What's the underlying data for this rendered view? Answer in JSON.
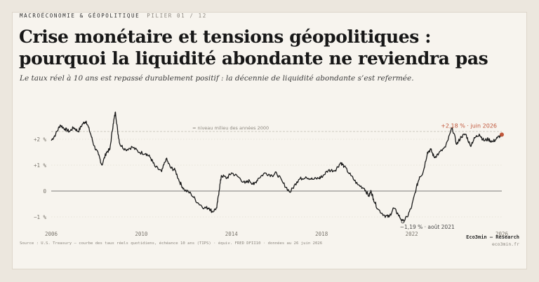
{
  "header": {
    "kicker": "MACROÉCONOMIE & GÉOPOLITIQUE",
    "pillar": "PILIER 01 / 12",
    "title": "Crise monétaire et tensions géopolitiques : pourquoi la liquidité abondante ne reviendra pas",
    "subtitle": "Le taux réel à 10 ans est repassé durablement positif : la décennie de liquidité abondante s’est refermée."
  },
  "footer": {
    "source": "Source : U.S. Treasury — courbe des taux réels quotidiens, échéance 10 ans (TIPS) · équiv. FRED DFII10 · données au 26 juin 2026",
    "brand": "Eco3min — Research",
    "url": "eco3min.fr"
  },
  "colors": {
    "line": "#1a1a1a",
    "accent": "#c0563a",
    "background": "#f7f4ee",
    "frame": "#ece7de"
  },
  "chart_data": {
    "type": "line",
    "title": "",
    "xlabel": "",
    "ylabel": "",
    "xlim": [
      2006,
      2026
    ],
    "ylim": [
      -1.25,
      3
    ],
    "x_ticks": [
      "2006",
      "2010",
      "2014",
      "2018",
      "2022",
      "2026"
    ],
    "y_ticks": [
      {
        "value": 2,
        "label": "+2 %"
      },
      {
        "value": 1,
        "label": "+1 %"
      },
      {
        "value": 0,
        "label": "0"
      },
      {
        "value": -1,
        "label": "−1 %"
      }
    ],
    "reference_line": {
      "value": 2.3,
      "label": "≈ niveau milieu des années 2000"
    },
    "series": [
      {
        "values": [
          {
            "x": 2006.0,
            "y": 1.95
          },
          {
            "x": 2006.2,
            "y": 2.2
          },
          {
            "x": 2006.4,
            "y": 2.55
          },
          {
            "x": 2006.6,
            "y": 2.4
          },
          {
            "x": 2006.8,
            "y": 2.3
          },
          {
            "x": 2007.0,
            "y": 2.45
          },
          {
            "x": 2007.2,
            "y": 2.3
          },
          {
            "x": 2007.4,
            "y": 2.6
          },
          {
            "x": 2007.55,
            "y": 2.7
          },
          {
            "x": 2007.75,
            "y": 2.2
          },
          {
            "x": 2007.9,
            "y": 1.75
          },
          {
            "x": 2008.1,
            "y": 1.4
          },
          {
            "x": 2008.25,
            "y": 1.0
          },
          {
            "x": 2008.45,
            "y": 1.5
          },
          {
            "x": 2008.6,
            "y": 1.6
          },
          {
            "x": 2008.75,
            "y": 2.6
          },
          {
            "x": 2008.85,
            "y": 3.05
          },
          {
            "x": 2008.95,
            "y": 2.3
          },
          {
            "x": 2009.05,
            "y": 1.8
          },
          {
            "x": 2009.3,
            "y": 1.6
          },
          {
            "x": 2009.6,
            "y": 1.7
          },
          {
            "x": 2009.9,
            "y": 1.5
          },
          {
            "x": 2010.2,
            "y": 1.45
          },
          {
            "x": 2010.4,
            "y": 1.3
          },
          {
            "x": 2010.6,
            "y": 0.95
          },
          {
            "x": 2010.9,
            "y": 0.75
          },
          {
            "x": 2011.1,
            "y": 1.25
          },
          {
            "x": 2011.3,
            "y": 0.9
          },
          {
            "x": 2011.5,
            "y": 0.8
          },
          {
            "x": 2011.7,
            "y": 0.35
          },
          {
            "x": 2011.9,
            "y": 0.05
          },
          {
            "x": 2012.2,
            "y": -0.1
          },
          {
            "x": 2012.5,
            "y": -0.45
          },
          {
            "x": 2012.8,
            "y": -0.65
          },
          {
            "x": 2013.0,
            "y": -0.65
          },
          {
            "x": 2013.15,
            "y": -0.8
          },
          {
            "x": 2013.35,
            "y": -0.65
          },
          {
            "x": 2013.45,
            "y": 0.0
          },
          {
            "x": 2013.55,
            "y": 0.6
          },
          {
            "x": 2013.8,
            "y": 0.5
          },
          {
            "x": 2014.0,
            "y": 0.7
          },
          {
            "x": 2014.3,
            "y": 0.55
          },
          {
            "x": 2014.6,
            "y": 0.3
          },
          {
            "x": 2014.8,
            "y": 0.4
          },
          {
            "x": 2015.0,
            "y": 0.25
          },
          {
            "x": 2015.2,
            "y": 0.5
          },
          {
            "x": 2015.5,
            "y": 0.7
          },
          {
            "x": 2015.8,
            "y": 0.6
          },
          {
            "x": 2016.0,
            "y": 0.7
          },
          {
            "x": 2016.3,
            "y": 0.3
          },
          {
            "x": 2016.6,
            "y": -0.05
          },
          {
            "x": 2016.9,
            "y": 0.35
          },
          {
            "x": 2017.0,
            "y": 0.45
          },
          {
            "x": 2017.3,
            "y": 0.55
          },
          {
            "x": 2017.6,
            "y": 0.45
          },
          {
            "x": 2017.9,
            "y": 0.5
          },
          {
            "x": 2018.0,
            "y": 0.55
          },
          {
            "x": 2018.3,
            "y": 0.8
          },
          {
            "x": 2018.6,
            "y": 0.8
          },
          {
            "x": 2018.85,
            "y": 1.1
          },
          {
            "x": 2019.0,
            "y": 0.95
          },
          {
            "x": 2019.3,
            "y": 0.6
          },
          {
            "x": 2019.6,
            "y": 0.25
          },
          {
            "x": 2019.9,
            "y": 0.1
          },
          {
            "x": 2020.1,
            "y": -0.2
          },
          {
            "x": 2020.2,
            "y": 0.0
          },
          {
            "x": 2020.3,
            "y": -0.3
          },
          {
            "x": 2020.5,
            "y": -0.7
          },
          {
            "x": 2020.8,
            "y": -0.95
          },
          {
            "x": 2021.0,
            "y": -1.0
          },
          {
            "x": 2021.2,
            "y": -0.65
          },
          {
            "x": 2021.4,
            "y": -0.9
          },
          {
            "x": 2021.6,
            "y": -1.19
          },
          {
            "x": 2021.8,
            "y": -1.0
          },
          {
            "x": 2022.0,
            "y": -0.6
          },
          {
            "x": 2022.2,
            "y": 0.1
          },
          {
            "x": 2022.35,
            "y": 0.55
          },
          {
            "x": 2022.5,
            "y": 0.7
          },
          {
            "x": 2022.7,
            "y": 1.5
          },
          {
            "x": 2022.85,
            "y": 1.6
          },
          {
            "x": 2023.0,
            "y": 1.3
          },
          {
            "x": 2023.2,
            "y": 1.45
          },
          {
            "x": 2023.5,
            "y": 1.7
          },
          {
            "x": 2023.8,
            "y": 2.45
          },
          {
            "x": 2024.0,
            "y": 1.8
          },
          {
            "x": 2024.2,
            "y": 2.1
          },
          {
            "x": 2024.4,
            "y": 2.2
          },
          {
            "x": 2024.6,
            "y": 1.75
          },
          {
            "x": 2024.8,
            "y": 2.05
          },
          {
            "x": 2025.0,
            "y": 2.2
          },
          {
            "x": 2025.2,
            "y": 1.95
          },
          {
            "x": 2025.4,
            "y": 2.0
          },
          {
            "x": 2025.6,
            "y": 1.9
          },
          {
            "x": 2025.8,
            "y": 2.05
          },
          {
            "x": 2026.0,
            "y": 2.18
          }
        ]
      }
    ],
    "annotations": [
      {
        "x": 2026.0,
        "y": 2.18,
        "text": "+2,18 % · juin 2026",
        "highlight": true
      },
      {
        "x": 2021.6,
        "y": -1.19,
        "text": "−1,19 % · août 2021",
        "highlight": false
      }
    ],
    "grid": true
  }
}
